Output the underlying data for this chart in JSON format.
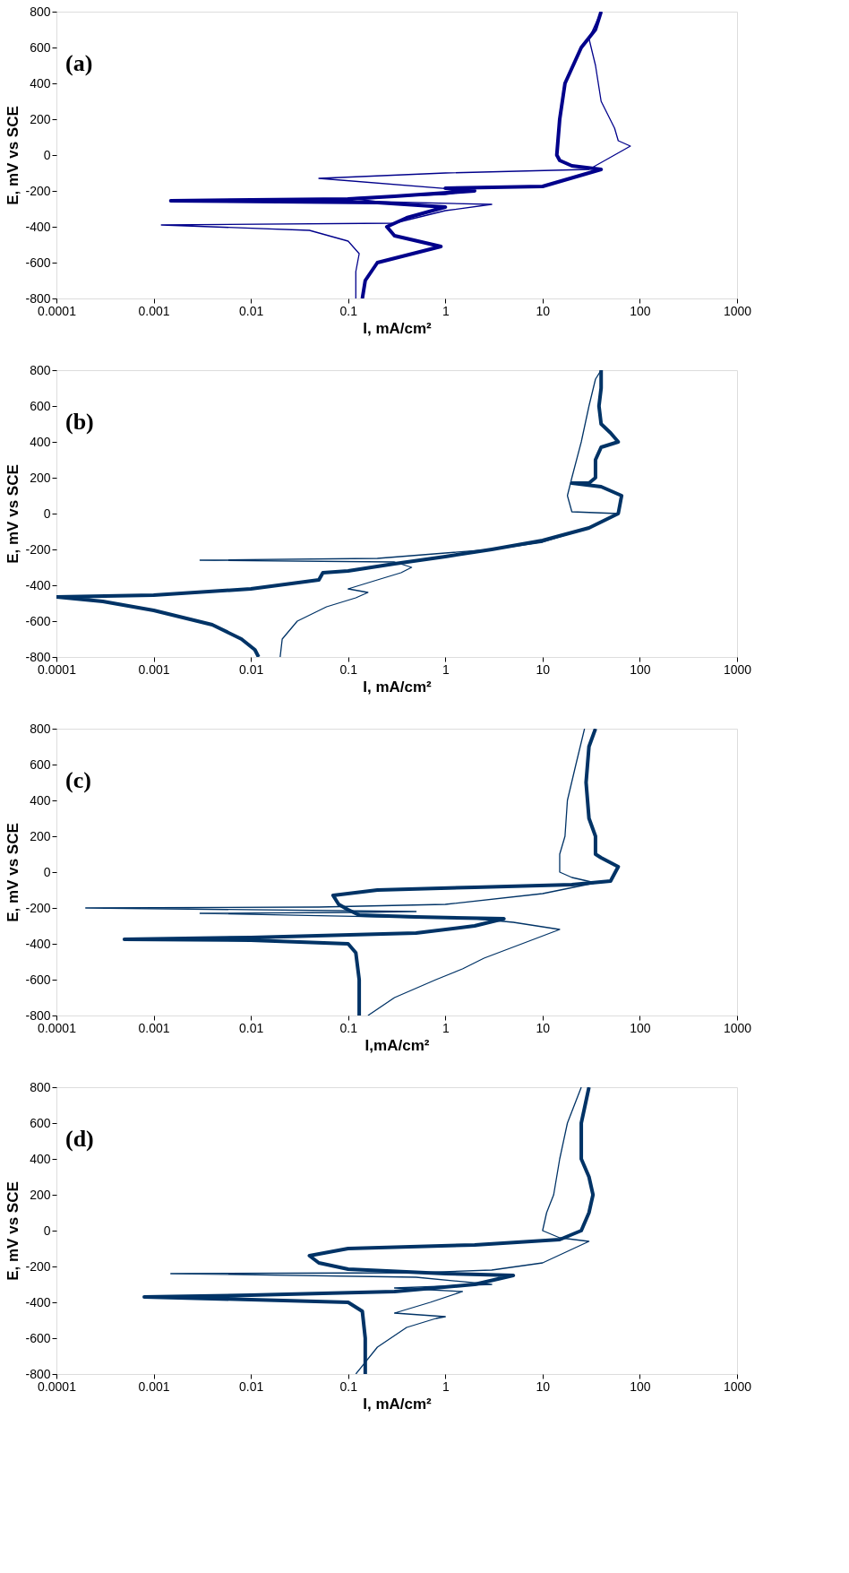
{
  "chart_data": [
    {
      "type": "line",
      "xlabel": "I, mA/cm²",
      "ylabel": "E, mV vs SCE",
      "annotations": [
        "(a)"
      ],
      "log": "x",
      "grid": false,
      "legend": false,
      "xlim": [
        0.0001,
        1000
      ],
      "xticks": [
        0.0001,
        0.001,
        0.01,
        0.1,
        1,
        10,
        100,
        1000
      ],
      "ylim": [
        -800,
        800
      ],
      "yticks": [
        -800,
        -600,
        -400,
        -200,
        0,
        200,
        400,
        600,
        800
      ],
      "series": [
        {
          "color": "#00008b",
          "x": [
            0.12,
            0.12,
            0.13,
            0.1,
            0.04,
            0.0012,
            0.3,
            1,
            3,
            0.2,
            0.1,
            1,
            2,
            0.05,
            1,
            30,
            80,
            60,
            55,
            40,
            35,
            30,
            40
          ],
          "values": [
            -800,
            -650,
            -550,
            -480,
            -420,
            -390,
            -380,
            -310,
            -275,
            -260,
            -240,
            -220,
            -200,
            -130,
            -100,
            -80,
            50,
            80,
            150,
            300,
            500,
            650,
            800
          ]
        },
        {
          "color": "#00008b",
          "x": [
            0.14,
            0.15,
            0.2,
            0.9,
            0.3,
            0.25,
            0.4,
            1,
            0.2,
            0.0015,
            0.1,
            0.3,
            2,
            1,
            10,
            40,
            20,
            15,
            14,
            15,
            17,
            25,
            35,
            40
          ],
          "values": [
            -800,
            -700,
            -600,
            -510,
            -450,
            -400,
            -350,
            -290,
            -265,
            -255,
            -245,
            -230,
            -200,
            -185,
            -175,
            -80,
            -60,
            -30,
            0,
            200,
            400,
            600,
            700,
            800
          ]
        }
      ]
    },
    {
      "type": "line",
      "xlabel": "I, mA/cm²",
      "ylabel": "E, mV vs SCE",
      "annotations": [
        "(b)"
      ],
      "log": "x",
      "grid": false,
      "legend": false,
      "xlim": [
        0.0001,
        1000
      ],
      "xticks": [
        0.0001,
        0.001,
        0.01,
        0.1,
        1,
        10,
        100,
        1000
      ],
      "ylim": [
        -800,
        800
      ],
      "yticks": [
        -800,
        -600,
        -400,
        -200,
        0,
        200,
        400,
        600,
        800
      ],
      "series": [
        {
          "color": "#003366",
          "x": [
            0.02,
            0.021,
            0.03,
            0.06,
            0.12,
            0.16,
            0.1,
            0.2,
            0.35,
            0.45,
            0.3,
            0.003,
            0.2,
            1,
            3,
            10,
            30,
            60,
            20,
            18,
            20,
            25,
            30,
            35,
            40
          ],
          "values": [
            -800,
            -700,
            -600,
            -520,
            -470,
            -440,
            -420,
            -370,
            -330,
            -300,
            -270,
            -260,
            -250,
            -220,
            -200,
            -160,
            -80,
            0,
            10,
            100,
            200,
            400,
            600,
            750,
            800
          ]
        },
        {
          "color": "#003366",
          "x": [
            0.012,
            0.011,
            0.008,
            0.004,
            0.001,
            0.0003,
            0.0001,
            0.001,
            0.01,
            0.05,
            0.055,
            0.1,
            0.3,
            1,
            3,
            10,
            30,
            60,
            65,
            40,
            20,
            30,
            35,
            35,
            40,
            60,
            50,
            40,
            38,
            40,
            40
          ],
          "values": [
            -800,
            -760,
            -700,
            -620,
            -540,
            -490,
            -465,
            -455,
            -420,
            -370,
            -330,
            -320,
            -280,
            -240,
            -200,
            -150,
            -80,
            0,
            100,
            150,
            170,
            170,
            200,
            300,
            370,
            400,
            450,
            500,
            600,
            700,
            800
          ]
        }
      ]
    },
    {
      "type": "line",
      "xlabel": "I,mA/cm²",
      "ylabel": "E, mV vs SCE",
      "annotations": [
        "(c)"
      ],
      "log": "x",
      "grid": false,
      "legend": false,
      "xlim": [
        0.0001,
        1000
      ],
      "xticks": [
        0.0001,
        0.001,
        0.01,
        0.1,
        1,
        10,
        100,
        1000
      ],
      "ylim": [
        -800,
        800
      ],
      "yticks": [
        -800,
        -600,
        -400,
        -200,
        0,
        200,
        400,
        600,
        800
      ],
      "series": [
        {
          "color": "#003366",
          "x": [
            0.16,
            0.3,
            0.8,
            1.5,
            2.5,
            15,
            5,
            2,
            0.003,
            0.1,
            0.5,
            0.0002,
            0.05,
            1,
            10,
            35,
            20,
            15,
            15,
            17,
            18,
            22,
            27
          ],
          "values": [
            -800,
            -700,
            -600,
            -540,
            -480,
            -320,
            -280,
            -260,
            -230,
            -225,
            -220,
            -200,
            -195,
            -180,
            -120,
            -60,
            -30,
            0,
            100,
            200,
            400,
            600,
            800
          ]
        },
        {
          "color": "#003366",
          "x": [
            0.13,
            0.13,
            0.12,
            0.1,
            0.01,
            0.0005,
            0.01,
            0.5,
            2,
            4,
            0.5,
            0.13,
            0.1,
            0.08,
            0.07,
            0.2,
            2,
            20,
            50,
            60,
            40,
            35,
            35,
            30,
            28,
            30,
            35
          ],
          "values": [
            -800,
            -600,
            -450,
            -400,
            -380,
            -375,
            -365,
            -340,
            -300,
            -260,
            -250,
            -240,
            -210,
            -180,
            -130,
            -100,
            -85,
            -70,
            -50,
            30,
            80,
            100,
            200,
            300,
            500,
            700,
            800
          ]
        }
      ]
    },
    {
      "type": "line",
      "xlabel": "I, mA/cm²",
      "ylabel": "E, mV vs SCE",
      "annotations": [
        "(d)"
      ],
      "log": "x",
      "grid": false,
      "legend": false,
      "xlim": [
        0.0001,
        1000
      ],
      "xticks": [
        0.0001,
        0.001,
        0.01,
        0.1,
        1,
        10,
        100,
        1000
      ],
      "ylim": [
        -800,
        800
      ],
      "yticks": [
        -800,
        -600,
        -400,
        -200,
        0,
        200,
        400,
        600,
        800
      ],
      "series": [
        {
          "color": "#003366",
          "x": [
            0.12,
            0.2,
            0.4,
            0.8,
            1,
            0.3,
            0.7,
            1.5,
            0.3,
            3,
            0.5,
            0.0015,
            0.5,
            3,
            10,
            30,
            15,
            10,
            11,
            13,
            15,
            18,
            25
          ],
          "values": [
            -800,
            -650,
            -540,
            -490,
            -480,
            -460,
            -400,
            -340,
            -320,
            -300,
            -260,
            -240,
            -235,
            -220,
            -180,
            -60,
            -40,
            0,
            100,
            200,
            400,
            600,
            800
          ]
        },
        {
          "color": "#003366",
          "x": [
            0.15,
            0.15,
            0.14,
            0.1,
            0.01,
            0.0008,
            0.01,
            0.3,
            2,
            5,
            1,
            0.1,
            0.05,
            0.04,
            0.1,
            2,
            15,
            25,
            30,
            33,
            30,
            25,
            25,
            30
          ],
          "values": [
            -800,
            -600,
            -450,
            -400,
            -385,
            -370,
            -360,
            -340,
            -300,
            -250,
            -240,
            -215,
            -180,
            -140,
            -100,
            -80,
            -50,
            0,
            100,
            200,
            300,
            400,
            600,
            800
          ]
        }
      ]
    }
  ]
}
